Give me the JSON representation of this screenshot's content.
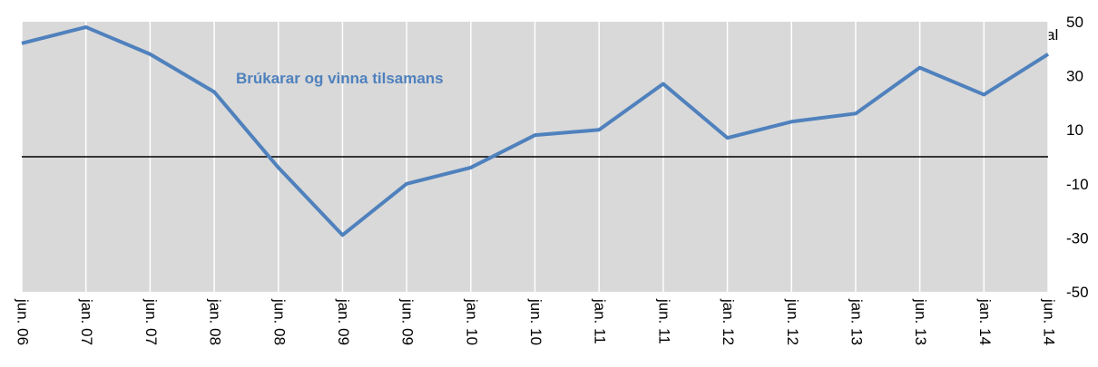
{
  "chart_data": {
    "type": "line",
    "y_label": "Vísital",
    "categories": [
      "jun. 06",
      "jan. 07",
      "jun. 07",
      "jan. 08",
      "jun. 08",
      "jan. 09",
      "jun. 09",
      "jan. 10",
      "jun. 10",
      "jan. 11",
      "jun. 11",
      "jan. 12",
      "jun. 12",
      "jan. 13",
      "jun. 13",
      "jan. 14",
      "jun. 14"
    ],
    "series": [
      {
        "name": "Brúkarar og vinna tilsamans",
        "color": "#4f81bd",
        "values": [
          42,
          48,
          38,
          24,
          -4,
          -29,
          -10,
          -4,
          8,
          10,
          27,
          7,
          13,
          16,
          33,
          23,
          38
        ]
      }
    ],
    "ylim": [
      -50,
      50
    ],
    "yticks": [
      -50,
      -30,
      -10,
      10,
      30,
      50
    ],
    "y_axis_side": "right",
    "grid": "vertical",
    "background": "#d9d9d9"
  }
}
